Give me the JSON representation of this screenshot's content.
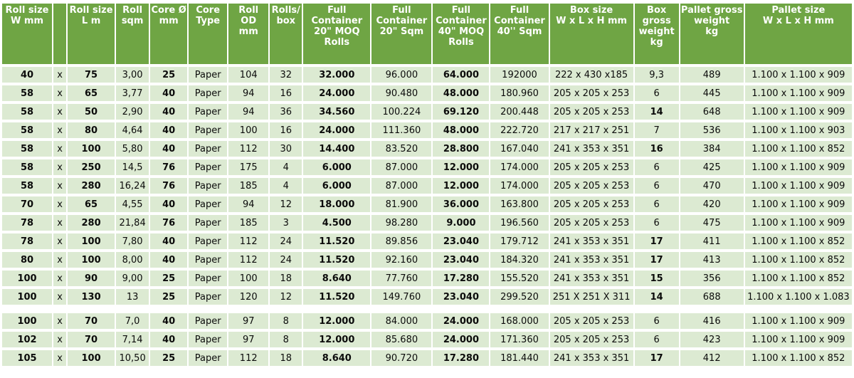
{
  "colors": {
    "header_bg": "#6fa544",
    "header_text": "#ffffff",
    "row_bg": "#dcead2",
    "page_bg": "#ffffff",
    "body_text": "#0b0b0b"
  },
  "table": {
    "columns": [
      {
        "id": "roll-w",
        "label": "Roll size\nW mm"
      },
      {
        "id": "times",
        "label": ""
      },
      {
        "id": "roll-l",
        "label": "Roll size\nL m"
      },
      {
        "id": "roll-sqm",
        "label": "Roll\nsqm"
      },
      {
        "id": "core-d",
        "label": "Core Ø\nmm"
      },
      {
        "id": "core-type",
        "label": "Core\nType"
      },
      {
        "id": "roll-od",
        "label": "Roll OD\nmm"
      },
      {
        "id": "rolls-box",
        "label": "Rolls/\nbox"
      },
      {
        "id": "moq20",
        "label": "Full\nContainer\n20\" MOQ\nRolls"
      },
      {
        "id": "sqm20",
        "label": "Full\nContainer\n20\" Sqm"
      },
      {
        "id": "moq40",
        "label": "Full\nContainer\n40\" MOQ\nRolls"
      },
      {
        "id": "sqm40",
        "label": "Full\nContainer\n40'' Sqm"
      },
      {
        "id": "box-size",
        "label": "Box size\nW x L x H mm"
      },
      {
        "id": "box-weight",
        "label": "Box\ngross\nweight\nkg"
      },
      {
        "id": "pallet-weight",
        "label": "Pallet gross\nweight\nkg"
      },
      {
        "id": "pallet-size",
        "label": "Pallet size\nW x L x H mm"
      }
    ],
    "bold_column_indexes": [
      0,
      2,
      4,
      8,
      10
    ],
    "spacer_after_row_index": 12,
    "rows": [
      {
        "cells": [
          "40",
          "x",
          "75",
          "3,00",
          "25",
          "Paper",
          "104",
          "32",
          "32.000",
          "96.000",
          "64.000",
          "192000",
          "222 x 430 x185",
          "9,3",
          "489",
          "1.100 x 1.100 x 909"
        ],
        "box_weight_bold": false
      },
      {
        "cells": [
          "58",
          "x",
          "65",
          "3,77",
          "40",
          "Paper",
          "94",
          "16",
          "24.000",
          "90.480",
          "48.000",
          "180.960",
          "205 x 205 x 253",
          "6",
          "445",
          "1.100 x 1.100 x 909"
        ],
        "box_weight_bold": false
      },
      {
        "cells": [
          "58",
          "x",
          "50",
          "2,90",
          "40",
          "Paper",
          "94",
          "36",
          "34.560",
          "100.224",
          "69.120",
          "200.448",
          "205 x 205 x 253",
          "14",
          "648",
          "1.100 x 1.100 x 909"
        ],
        "box_weight_bold": true
      },
      {
        "cells": [
          "58",
          "x",
          "80",
          "4,64",
          "40",
          "Paper",
          "100",
          "16",
          "24.000",
          "111.360",
          "48.000",
          "222.720",
          "217 x 217 x 251",
          "7",
          "536",
          "1.100 x 1.100 x 903"
        ],
        "box_weight_bold": false
      },
      {
        "cells": [
          "58",
          "x",
          "100",
          "5,80",
          "40",
          "Paper",
          "112",
          "30",
          "14.400",
          "83.520",
          "28.800",
          "167.040",
          "241 x 353 x 351",
          "16",
          "384",
          "1.100 x 1.100 x 852"
        ],
        "box_weight_bold": true
      },
      {
        "cells": [
          "58",
          "x",
          "250",
          "14,5",
          "76",
          "Paper",
          "175",
          "4",
          "6.000",
          "87.000",
          "12.000",
          "174.000",
          "205 x 205 x 253",
          "6",
          "425",
          "1.100 x 1.100 x 909"
        ],
        "box_weight_bold": false
      },
      {
        "cells": [
          "58",
          "x",
          "280",
          "16,24",
          "76",
          "Paper",
          "185",
          "4",
          "6.000",
          "87.000",
          "12.000",
          "174.000",
          "205 x 205 x 253",
          "6",
          "470",
          "1.100 x 1.100 x 909"
        ],
        "box_weight_bold": false
      },
      {
        "cells": [
          "70",
          "x",
          "65",
          "4,55",
          "40",
          "Paper",
          "94",
          "12",
          "18.000",
          "81.900",
          "36.000",
          "163.800",
          "205 x 205 x 253",
          "6",
          "420",
          "1.100 x 1.100 x 909"
        ],
        "box_weight_bold": false
      },
      {
        "cells": [
          "78",
          "x",
          "280",
          "21,84",
          "76",
          "Paper",
          "185",
          "3",
          "4.500",
          "98.280",
          "9.000",
          "196.560",
          "205 x 205 x 253",
          "6",
          "475",
          "1.100 x 1.100 x 909"
        ],
        "box_weight_bold": false
      },
      {
        "cells": [
          "78",
          "x",
          "100",
          "7,80",
          "40",
          "Paper",
          "112",
          "24",
          "11.520",
          "89.856",
          "23.040",
          "179.712",
          "241 x 353 x 351",
          "17",
          "411",
          "1.100 x 1.100 x 852"
        ],
        "box_weight_bold": true
      },
      {
        "cells": [
          "80",
          "x",
          "100",
          "8,00",
          "40",
          "Paper",
          "112",
          "24",
          "11.520",
          "92.160",
          "23.040",
          "184.320",
          "241 x 353 x 351",
          "17",
          "413",
          "1.100 x 1.100 x 852"
        ],
        "box_weight_bold": true
      },
      {
        "cells": [
          "100",
          "x",
          "90",
          "9,00",
          "25",
          "Paper",
          "100",
          "18",
          "8.640",
          "77.760",
          "17.280",
          "155.520",
          "241 x 353 x 351",
          "15",
          "356",
          "1.100 x 1.100 x 852"
        ],
        "box_weight_bold": true
      },
      {
        "cells": [
          "100",
          "x",
          "130",
          "13",
          "25",
          "Paper",
          "120",
          "12",
          "11.520",
          "149.760",
          "23.040",
          "299.520",
          "251 X 251 X 311",
          "14",
          "688",
          "1.100 x 1.100 x 1.083"
        ],
        "box_weight_bold": true
      },
      {
        "cells": [
          "100",
          "x",
          "70",
          "7,0",
          "40",
          "Paper",
          "97",
          "8",
          "12.000",
          "84.000",
          "24.000",
          "168.000",
          "205 x 205 x 253",
          "6",
          "416",
          "1.100 x 1.100 x 909"
        ],
        "box_weight_bold": false
      },
      {
        "cells": [
          "102",
          "x",
          "70",
          "7,14",
          "40",
          "Paper",
          "97",
          "8",
          "12.000",
          "85.680",
          "24.000",
          "171.360",
          "205 x 205 x 253",
          "6",
          "423",
          "1.100 x 1.100 x 909"
        ],
        "box_weight_bold": false
      },
      {
        "cells": [
          "105",
          "x",
          "100",
          "10,50",
          "25",
          "Paper",
          "112",
          "18",
          "8.640",
          "90.720",
          "17.280",
          "181.440",
          "241 x 353 x 351",
          "17",
          "412",
          "1.100 x 1.100 x 852"
        ],
        "box_weight_bold": true
      }
    ]
  }
}
